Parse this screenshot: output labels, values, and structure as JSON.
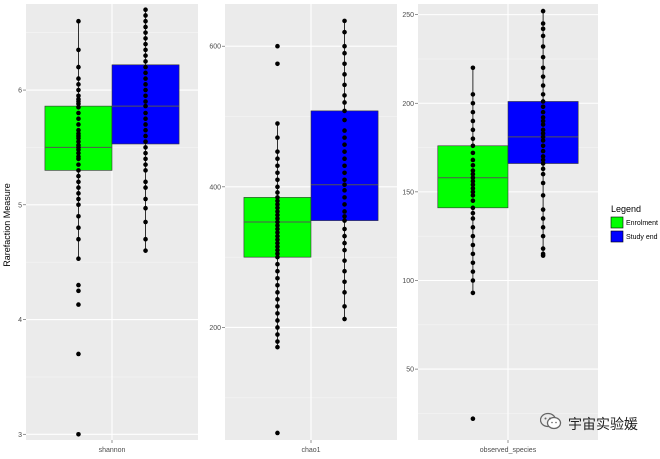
{
  "chart_data": {
    "type": "boxplot",
    "ylabel": "Rarefaction Measure",
    "legend": {
      "title": "Legend",
      "position": "right",
      "entries": [
        {
          "label": "Enrolment",
          "color": "#00ff00"
        },
        {
          "label": "Study end",
          "color": "#0000ff"
        }
      ]
    },
    "panels": [
      {
        "xlabel": "shannon",
        "ylim": [
          2.95,
          6.75
        ],
        "yticks": [
          3,
          4,
          5,
          6
        ],
        "groups": [
          {
            "name": "Enrolment",
            "q1": 5.3,
            "median": 5.5,
            "q3": 5.86,
            "whisker_low": 4.53,
            "whisker_high": 6.6,
            "points": [
              6.6,
              6.35,
              6.2,
              6.1,
              6.05,
              6.0,
              5.95,
              5.92,
              5.9,
              5.88,
              5.85,
              5.8,
              5.75,
              5.7,
              5.65,
              5.62,
              5.6,
              5.58,
              5.55,
              5.52,
              5.5,
              5.48,
              5.45,
              5.42,
              5.4,
              5.35,
              5.3,
              5.25,
              5.2,
              5.15,
              5.1,
              5.05,
              5.0,
              4.9,
              4.8,
              4.7,
              4.53,
              4.3,
              4.25,
              4.13,
              3.7,
              3.0
            ]
          },
          {
            "name": "Study end",
            "q1": 5.53,
            "median": 5.86,
            "q3": 6.22,
            "whisker_low": 4.6,
            "whisker_high": 6.7,
            "points": [
              6.7,
              6.65,
              6.6,
              6.55,
              6.5,
              6.45,
              6.4,
              6.35,
              6.3,
              6.25,
              6.2,
              6.15,
              6.1,
              6.05,
              6.0,
              5.95,
              5.9,
              5.86,
              5.8,
              5.75,
              5.7,
              5.65,
              5.6,
              5.55,
              5.5,
              5.45,
              5.4,
              5.35,
              5.3,
              5.2,
              5.15,
              5.05,
              4.97,
              4.85,
              4.7,
              4.6
            ]
          }
        ]
      },
      {
        "xlabel": "chao1",
        "ylim": [
          40,
          660
        ],
        "yticks": [
          200,
          400,
          600
        ],
        "groups": [
          {
            "name": "Enrolment",
            "q1": 300,
            "median": 350,
            "q3": 385,
            "whisker_low": 172,
            "whisker_high": 490,
            "points": [
              600,
              575,
              490,
              470,
              450,
              440,
              430,
              420,
              410,
              400,
              392,
              385,
              380,
              375,
              370,
              365,
              360,
              355,
              350,
              345,
              340,
              335,
              330,
              325,
              320,
              315,
              310,
              305,
              300,
              290,
              280,
              270,
              260,
              250,
              240,
              230,
              220,
              210,
              200,
              190,
              180,
              172,
              50
            ]
          },
          {
            "name": "Study end",
            "q1": 352,
            "median": 403,
            "q3": 508,
            "whisker_low": 212,
            "whisker_high": 636,
            "points": [
              636,
              620,
              600,
              590,
              575,
              560,
              545,
              530,
              520,
              508,
              495,
              480,
              470,
              460,
              450,
              440,
              430,
              420,
              410,
              403,
              395,
              385,
              375,
              365,
              358,
              352,
              340,
              330,
              320,
              310,
              295,
              280,
              265,
              250,
              230,
              212
            ]
          }
        ]
      },
      {
        "xlabel": "observed_species",
        "ylim": [
          10,
          256
        ],
        "yticks": [
          50,
          100,
          150,
          200,
          250
        ],
        "groups": [
          {
            "name": "Enrolment",
            "q1": 141,
            "median": 158,
            "q3": 176,
            "whisker_low": 93,
            "whisker_high": 220,
            "points": [
              220,
              205,
              200,
              195,
              190,
              185,
              180,
              176,
              172,
              168,
              165,
              162,
              160,
              158,
              156,
              154,
              152,
              150,
              148,
              145,
              141,
              138,
              135,
              130,
              125,
              120,
              115,
              110,
              105,
              100,
              93,
              22
            ]
          },
          {
            "name": "Study end",
            "q1": 166,
            "median": 181,
            "q3": 201,
            "whisker_low": 114,
            "whisker_high": 252,
            "points": [
              252,
              245,
              242,
              238,
              232,
              226,
              220,
              215,
              210,
              205,
              201,
              198,
              195,
              192,
              190,
              188,
              185,
              183,
              181,
              179,
              176,
              173,
              170,
              168,
              166,
              163,
              160,
              155,
              148,
              140,
              135,
              130,
              125,
              118,
              115,
              114
            ]
          }
        ]
      }
    ]
  },
  "watermark": {
    "text": "宇宙实验媛",
    "icon": "wechat-icon"
  }
}
